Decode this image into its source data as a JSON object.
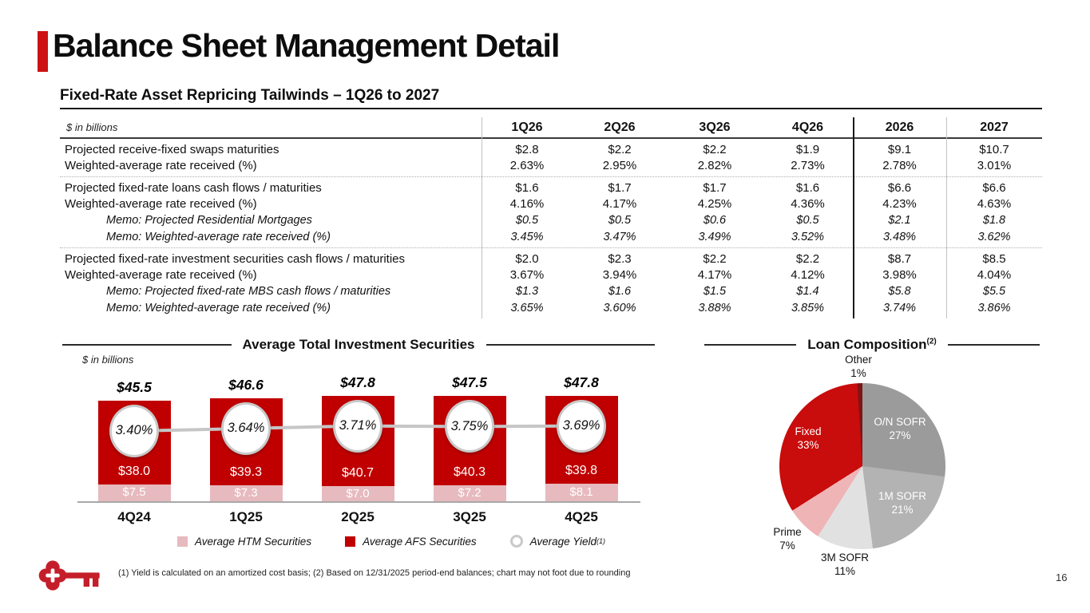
{
  "header": {
    "title": "Balance Sheet Management Detail",
    "accent_color": "#CC1212"
  },
  "table": {
    "section_title": "Fixed-Rate Asset Repricing Tailwinds – 1Q26 to 2027",
    "unit_label": "$ in billions",
    "columns": [
      "1Q26",
      "2Q26",
      "3Q26",
      "4Q26",
      "2026",
      "2027"
    ],
    "groups": [
      {
        "rows": [
          {
            "label": "Projected receive-fixed swaps maturities",
            "memo": false,
            "values": [
              "$2.8",
              "$2.2",
              "$2.2",
              "$1.9",
              "$9.1",
              "$10.7"
            ]
          },
          {
            "label": "Weighted-average rate received (%)",
            "memo": false,
            "values": [
              "2.63%",
              "2.95%",
              "2.82%",
              "2.73%",
              "2.78%",
              "3.01%"
            ]
          }
        ]
      },
      {
        "rows": [
          {
            "label": "Projected fixed-rate loans cash flows / maturities",
            "memo": false,
            "values": [
              "$1.6",
              "$1.7",
              "$1.7",
              "$1.6",
              "$6.6",
              "$6.6"
            ]
          },
          {
            "label": "Weighted-average rate received (%)",
            "memo": false,
            "values": [
              "4.16%",
              "4.17%",
              "4.25%",
              "4.36%",
              "4.23%",
              "4.63%"
            ]
          },
          {
            "label": "Memo: Projected Residential Mortgages",
            "memo": true,
            "values": [
              "$0.5",
              "$0.5",
              "$0.6",
              "$0.5",
              "$2.1",
              "$1.8"
            ]
          },
          {
            "label": "Memo: Weighted-average rate received (%)",
            "memo": true,
            "values": [
              "3.45%",
              "3.47%",
              "3.49%",
              "3.52%",
              "3.48%",
              "3.62%"
            ]
          }
        ]
      },
      {
        "rows": [
          {
            "label": "Projected fixed-rate investment securities cash flows / maturities",
            "memo": false,
            "values": [
              "$2.0",
              "$2.3",
              "$2.2",
              "$2.2",
              "$8.7",
              "$8.5"
            ]
          },
          {
            "label": "Weighted-average rate received (%)",
            "memo": false,
            "values": [
              "3.67%",
              "3.94%",
              "4.17%",
              "4.12%",
              "3.98%",
              "4.04%"
            ]
          },
          {
            "label": "Memo: Projected fixed-rate MBS cash flows / maturities",
            "memo": true,
            "values": [
              "$1.3",
              "$1.6",
              "$1.5",
              "$1.4",
              "$5.8",
              "$5.5"
            ]
          },
          {
            "label": "Memo: Weighted-average rate received (%)",
            "memo": true,
            "values": [
              "3.65%",
              "3.60%",
              "3.88%",
              "3.85%",
              "3.74%",
              "3.86%"
            ]
          }
        ]
      }
    ]
  },
  "chart_data": [
    {
      "type": "bar",
      "title": "Average Total Investment Securities",
      "unit_label": "$ in billions",
      "categories": [
        "4Q24",
        "1Q25",
        "2Q25",
        "3Q25",
        "4Q25"
      ],
      "series": [
        {
          "name": "Average HTM Securities",
          "color": "#E6BABE",
          "values": [
            7.5,
            7.3,
            7.0,
            7.2,
            8.1
          ],
          "labels": [
            "$7.5",
            "$7.3",
            "$7.0",
            "$7.2",
            "$8.1"
          ]
        },
        {
          "name": "Average AFS Securities",
          "color": "#C00000",
          "values": [
            38.0,
            39.3,
            40.7,
            40.3,
            39.8
          ],
          "labels": [
            "$38.0",
            "$39.3",
            "$40.7",
            "$40.3",
            "$39.8"
          ]
        }
      ],
      "totals": {
        "values": [
          45.5,
          46.6,
          47.8,
          47.5,
          47.8
        ],
        "labels": [
          "$45.5",
          "$46.6",
          "$47.8",
          "$47.5",
          "$47.8"
        ]
      },
      "yield_line": {
        "name": "Average Yield",
        "footnote_ref": "(1)",
        "values": [
          3.4,
          3.64,
          3.71,
          3.75,
          3.69
        ],
        "labels": [
          "3.40%",
          "3.64%",
          "3.71%",
          "3.75%",
          "3.69%"
        ]
      },
      "ylim": [
        0,
        50
      ],
      "legend": [
        {
          "swatch": "square",
          "color": "#E6BABE",
          "label": "Average HTM Securities"
        },
        {
          "swatch": "square",
          "color": "#C00000",
          "label": "Average AFS Securities"
        },
        {
          "swatch": "circle",
          "label": "Average Yield",
          "superscript": "(1)"
        }
      ]
    },
    {
      "type": "pie",
      "title": "Loan Composition",
      "superscript": "(2)",
      "start_angle_deg": 0,
      "direction": "clockwise",
      "slices": [
        {
          "name": "O/N SOFR",
          "pct": 27,
          "pct_label": "27%",
          "color": "#9B9B9B"
        },
        {
          "name": "1M SOFR",
          "pct": 21,
          "pct_label": "21%",
          "color": "#B3B3B3"
        },
        {
          "name": "3M SOFR",
          "pct": 11,
          "pct_label": "11%",
          "color": "#E1E1E1"
        },
        {
          "name": "Prime",
          "pct": 7,
          "pct_label": "7%",
          "color": "#EFB4B6"
        },
        {
          "name": "Fixed",
          "pct": 33,
          "pct_label": "33%",
          "color": "#C90C0C"
        },
        {
          "name": "Other",
          "pct": 1,
          "pct_label": "1%",
          "color": "#7D1517"
        }
      ]
    }
  ],
  "footer": {
    "footnote": "(1) Yield is calculated on an amortized cost basis; (2) Based on 12/31/2025 period-end balances; chart may not foot due to rounding",
    "page_number": "16",
    "logo": "keybank-key-logo"
  }
}
